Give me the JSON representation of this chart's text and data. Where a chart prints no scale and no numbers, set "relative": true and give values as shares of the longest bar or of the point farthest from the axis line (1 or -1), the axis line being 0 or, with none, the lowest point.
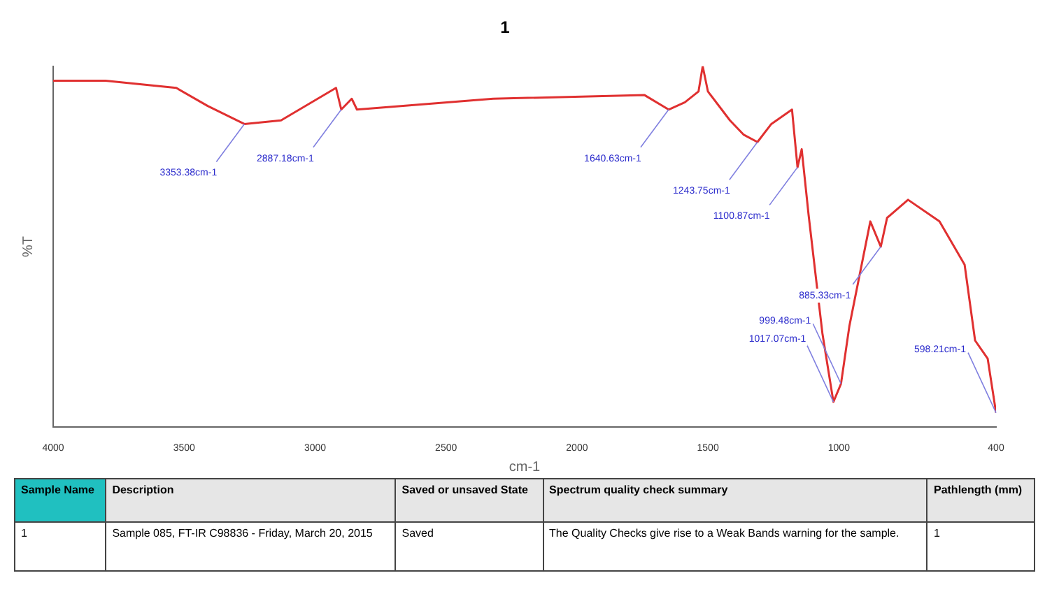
{
  "chart_data": {
    "type": "line",
    "title": "1",
    "xlabel": "cm-1",
    "ylabel": "%T",
    "relative": true,
    "xlim": [
      4000,
      400
    ],
    "xticks": [
      4000,
      3500,
      3000,
      2500,
      2000,
      1500,
      1000,
      400
    ],
    "series": [
      {
        "color": "#e03030",
        "x": [
          4000,
          3800,
          3530,
          3410,
          3270,
          3130,
          2920,
          2900,
          2860,
          2840,
          2320,
          1742,
          1650,
          1588,
          1536,
          1520,
          1500,
          1416,
          1363,
          1311,
          1258,
          1179,
          1158,
          1142,
          1116,
          1063,
          1021,
          992,
          960,
          880,
          840,
          816,
          736,
          616,
          520,
          480,
          432,
          400
        ],
        "values": [
          0.96,
          0.96,
          0.94,
          0.89,
          0.84,
          0.85,
          0.94,
          0.88,
          0.91,
          0.88,
          0.91,
          0.92,
          0.88,
          0.9,
          0.93,
          1.0,
          0.93,
          0.85,
          0.81,
          0.79,
          0.84,
          0.88,
          0.72,
          0.77,
          0.59,
          0.26,
          0.07,
          0.12,
          0.28,
          0.57,
          0.5,
          0.58,
          0.63,
          0.57,
          0.45,
          0.24,
          0.19,
          0.04
        ]
      }
    ],
    "marker": "none",
    "grid": false,
    "legend": false,
    "annotations": [
      {
        "text": "3353.38cm-1",
        "x": 3270,
        "y": 0.84
      },
      {
        "text": "2887.18cm-1",
        "x": 2900,
        "y": 0.88
      },
      {
        "text": "1640.63cm-1",
        "x": 1650,
        "y": 0.88
      },
      {
        "text": "1243.75cm-1",
        "x": 1311,
        "y": 0.79
      },
      {
        "text": "1100.87cm-1",
        "x": 1158,
        "y": 0.72
      },
      {
        "text": "885.33cm-1",
        "x": 840,
        "y": 0.5
      },
      {
        "text": "1017.07cm-1",
        "x": 1021,
        "y": 0.07
      },
      {
        "text": "999.48cm-1",
        "x": 992,
        "y": 0.12
      },
      {
        "text": "598.21cm-1",
        "x": 400,
        "y": 0.04
      },
      "Sample Name",
      "Description",
      "Saved or unsaved State",
      "Spectrum quality check summary",
      "Pathlength (mm)",
      "1",
      "Sample 085, FT-IR C98836 - Friday, March 20, 2015",
      "Saved",
      "The Quality Checks give rise to a Weak Bands warning for the sample.",
      "1"
    ]
  }
}
